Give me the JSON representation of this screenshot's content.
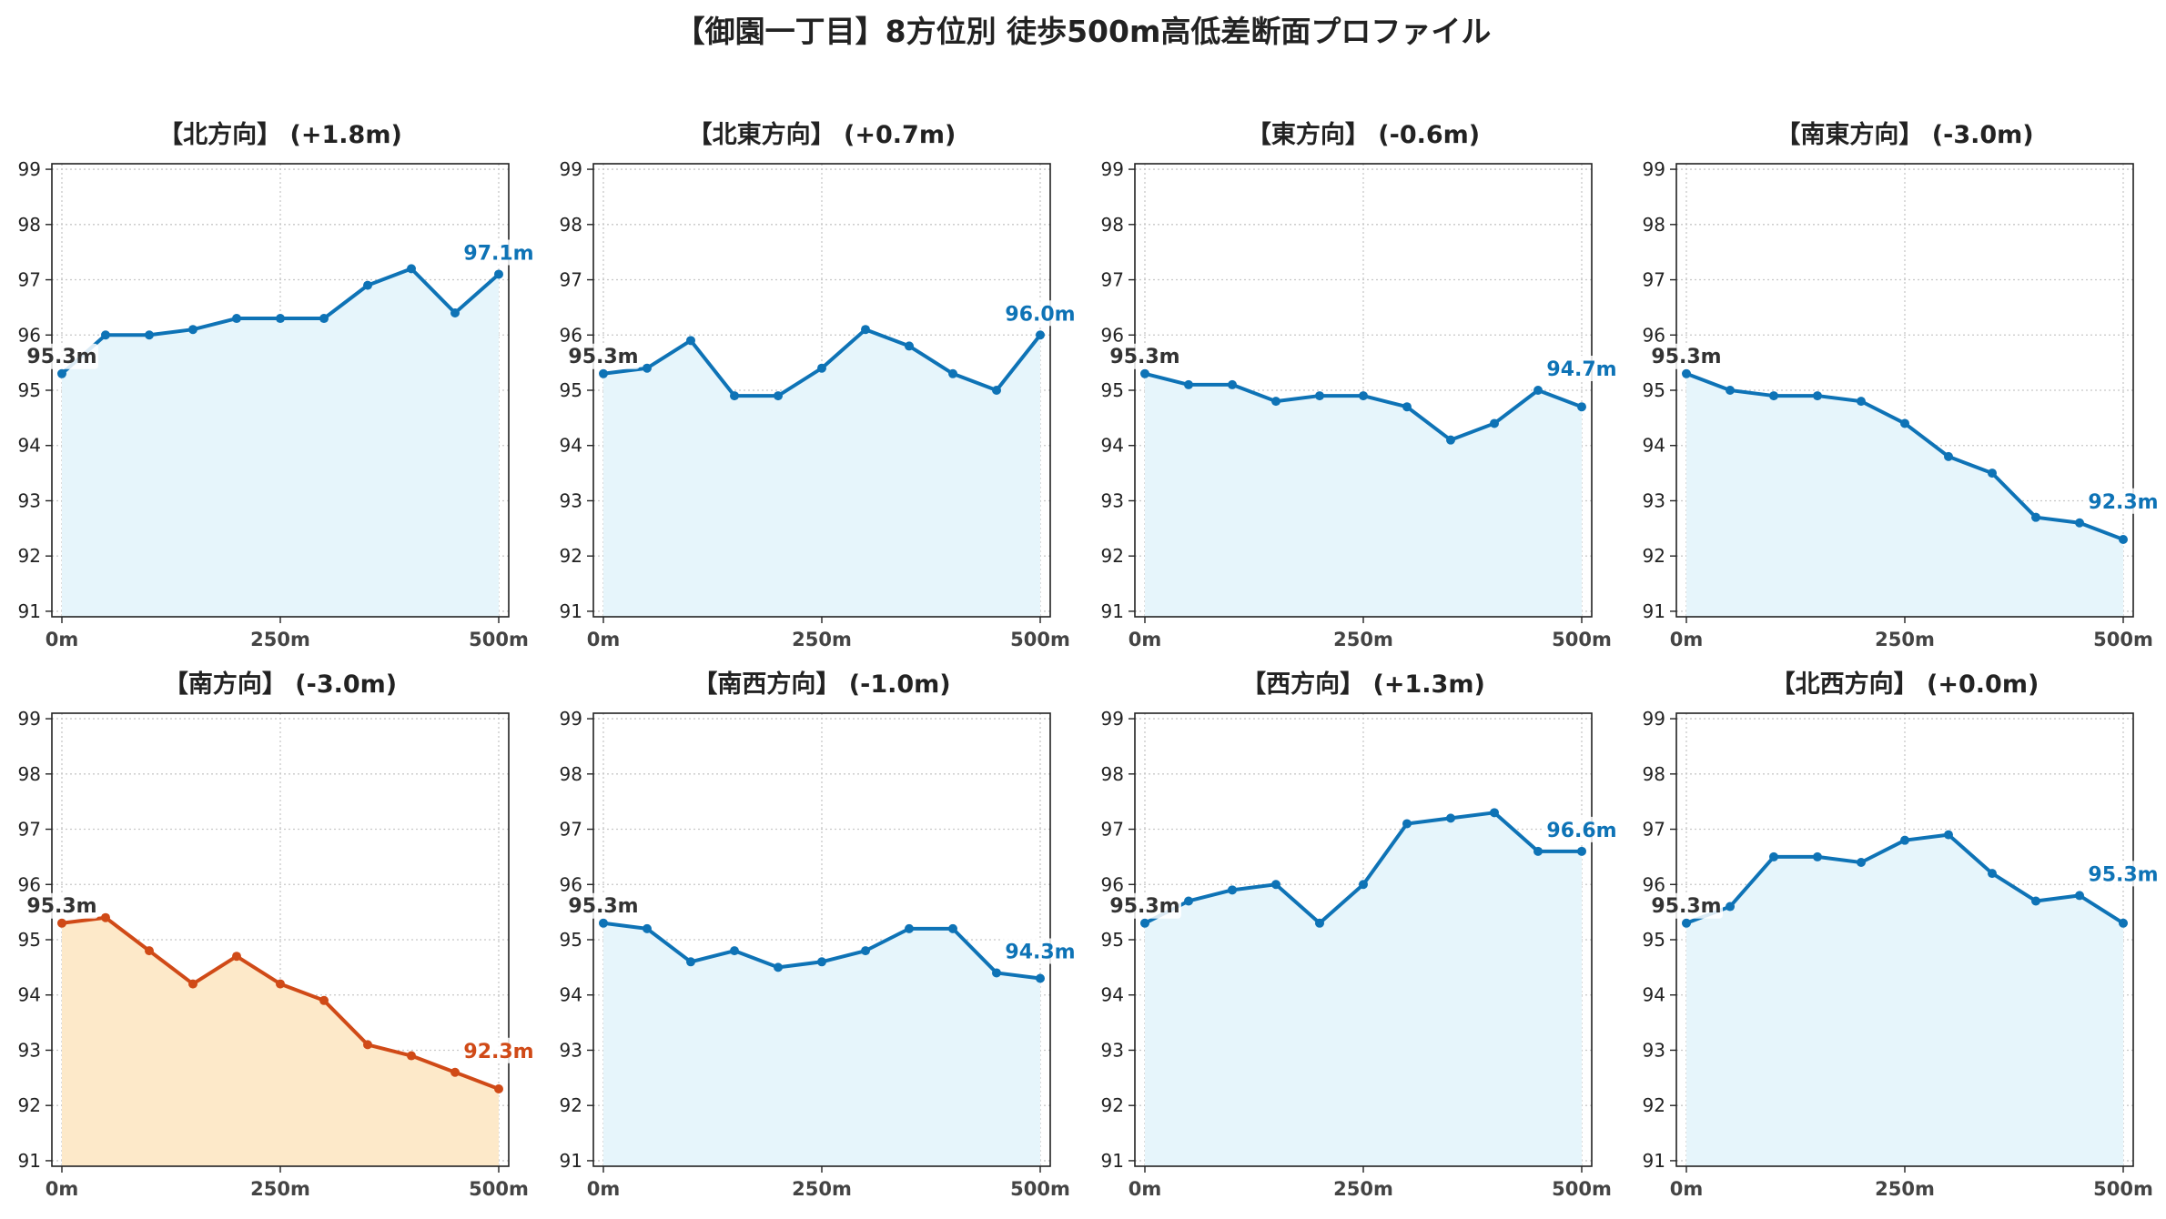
{
  "title": "【御園一丁目】8方位別 徒歩500m高低差断面プロファイル",
  "colors": {
    "normal_line": "#0e73b6",
    "normal_fill": "#e6f5fb",
    "highlight_line": "#d04a17",
    "highlight_fill": "#fde9c9",
    "start_label": "#333333",
    "axes": "#222222",
    "grid": "#c8c8c8"
  },
  "chart_data": [
    {
      "type": "area",
      "title": "【北方向】 (+1.8m)",
      "x": [
        0,
        50,
        100,
        150,
        200,
        250,
        300,
        350,
        400,
        450,
        500
      ],
      "values": [
        95.3,
        96.0,
        96.0,
        96.1,
        96.3,
        96.3,
        96.3,
        96.9,
        97.2,
        96.4,
        97.1
      ],
      "start_label": "95.3m",
      "end_label": "97.1m",
      "highlight": false,
      "ylim": [
        90.9,
        99.1
      ],
      "yticks": [
        "91",
        "92",
        "93",
        "94",
        "95",
        "96",
        "97",
        "98",
        "99"
      ],
      "xticks": [
        "0m",
        "250m",
        "500m"
      ],
      "grid": true
    },
    {
      "type": "area",
      "title": "【北東方向】 (+0.7m)",
      "x": [
        0,
        50,
        100,
        150,
        200,
        250,
        300,
        350,
        400,
        450,
        500
      ],
      "values": [
        95.3,
        95.4,
        95.9,
        94.9,
        94.9,
        95.4,
        96.1,
        95.8,
        95.3,
        95.0,
        96.0
      ],
      "start_label": "95.3m",
      "end_label": "96.0m",
      "highlight": false,
      "ylim": [
        90.9,
        99.1
      ],
      "yticks": [
        "91",
        "92",
        "93",
        "94",
        "95",
        "96",
        "97",
        "98",
        "99"
      ],
      "xticks": [
        "0m",
        "250m",
        "500m"
      ],
      "grid": true
    },
    {
      "type": "area",
      "title": "【東方向】 (-0.6m)",
      "x": [
        0,
        50,
        100,
        150,
        200,
        250,
        300,
        350,
        400,
        450,
        500
      ],
      "values": [
        95.3,
        95.1,
        95.1,
        94.8,
        94.9,
        94.9,
        94.7,
        94.1,
        94.4,
        95.0,
        94.7
      ],
      "start_label": "95.3m",
      "end_label": "94.7m",
      "highlight": false,
      "ylim": [
        90.9,
        99.1
      ],
      "yticks": [
        "91",
        "92",
        "93",
        "94",
        "95",
        "96",
        "97",
        "98",
        "99"
      ],
      "xticks": [
        "0m",
        "250m",
        "500m"
      ],
      "grid": true
    },
    {
      "type": "area",
      "title": "【南東方向】 (-3.0m)",
      "x": [
        0,
        50,
        100,
        150,
        200,
        250,
        300,
        350,
        400,
        450,
        500
      ],
      "values": [
        95.3,
        95.0,
        94.9,
        94.9,
        94.8,
        94.4,
        93.8,
        93.5,
        92.7,
        92.6,
        92.3
      ],
      "start_label": "95.3m",
      "end_label": "92.3m",
      "highlight": false,
      "ylim": [
        90.9,
        99.1
      ],
      "yticks": [
        "91",
        "92",
        "93",
        "94",
        "95",
        "96",
        "97",
        "98",
        "99"
      ],
      "xticks": [
        "0m",
        "250m",
        "500m"
      ],
      "grid": true
    },
    {
      "type": "area",
      "title": "【南方向】 (-3.0m)",
      "x": [
        0,
        50,
        100,
        150,
        200,
        250,
        300,
        350,
        400,
        450,
        500
      ],
      "values": [
        95.3,
        95.4,
        94.8,
        94.2,
        94.7,
        94.2,
        93.9,
        93.1,
        92.9,
        92.6,
        92.3
      ],
      "start_label": "95.3m",
      "end_label": "92.3m",
      "highlight": true,
      "ylim": [
        90.9,
        99.1
      ],
      "yticks": [
        "91",
        "92",
        "93",
        "94",
        "95",
        "96",
        "97",
        "98",
        "99"
      ],
      "xticks": [
        "0m",
        "250m",
        "500m"
      ],
      "grid": true
    },
    {
      "type": "area",
      "title": "【南西方向】 (-1.0m)",
      "x": [
        0,
        50,
        100,
        150,
        200,
        250,
        300,
        350,
        400,
        450,
        500
      ],
      "values": [
        95.3,
        95.2,
        94.6,
        94.8,
        94.5,
        94.6,
        94.8,
        95.2,
        95.2,
        94.4,
        94.3
      ],
      "start_label": "95.3m",
      "end_label": "94.3m",
      "highlight": false,
      "ylim": [
        90.9,
        99.1
      ],
      "yticks": [
        "91",
        "92",
        "93",
        "94",
        "95",
        "96",
        "97",
        "98",
        "99"
      ],
      "xticks": [
        "0m",
        "250m",
        "500m"
      ],
      "grid": true
    },
    {
      "type": "area",
      "title": "【西方向】 (+1.3m)",
      "x": [
        0,
        50,
        100,
        150,
        200,
        250,
        300,
        350,
        400,
        450,
        500
      ],
      "values": [
        95.3,
        95.7,
        95.9,
        96.0,
        95.3,
        96.0,
        97.1,
        97.2,
        97.3,
        96.6,
        96.6
      ],
      "start_label": "95.3m",
      "end_label": "96.6m",
      "highlight": false,
      "ylim": [
        90.9,
        99.1
      ],
      "yticks": [
        "91",
        "92",
        "93",
        "94",
        "95",
        "96",
        "97",
        "98",
        "99"
      ],
      "xticks": [
        "0m",
        "250m",
        "500m"
      ],
      "grid": true
    },
    {
      "type": "area",
      "title": "【北西方向】 (+0.0m)",
      "x": [
        0,
        50,
        100,
        150,
        200,
        250,
        300,
        350,
        400,
        450,
        500
      ],
      "values": [
        95.3,
        95.6,
        96.5,
        96.5,
        96.4,
        96.8,
        96.9,
        96.2,
        95.7,
        95.8,
        95.3
      ],
      "start_label": "95.3m",
      "end_label": "95.3m",
      "highlight": false,
      "ylim": [
        90.9,
        99.1
      ],
      "yticks": [
        "91",
        "92",
        "93",
        "94",
        "95",
        "96",
        "97",
        "98",
        "99"
      ],
      "xticks": [
        "0m",
        "250m",
        "500m"
      ],
      "grid": true
    }
  ]
}
